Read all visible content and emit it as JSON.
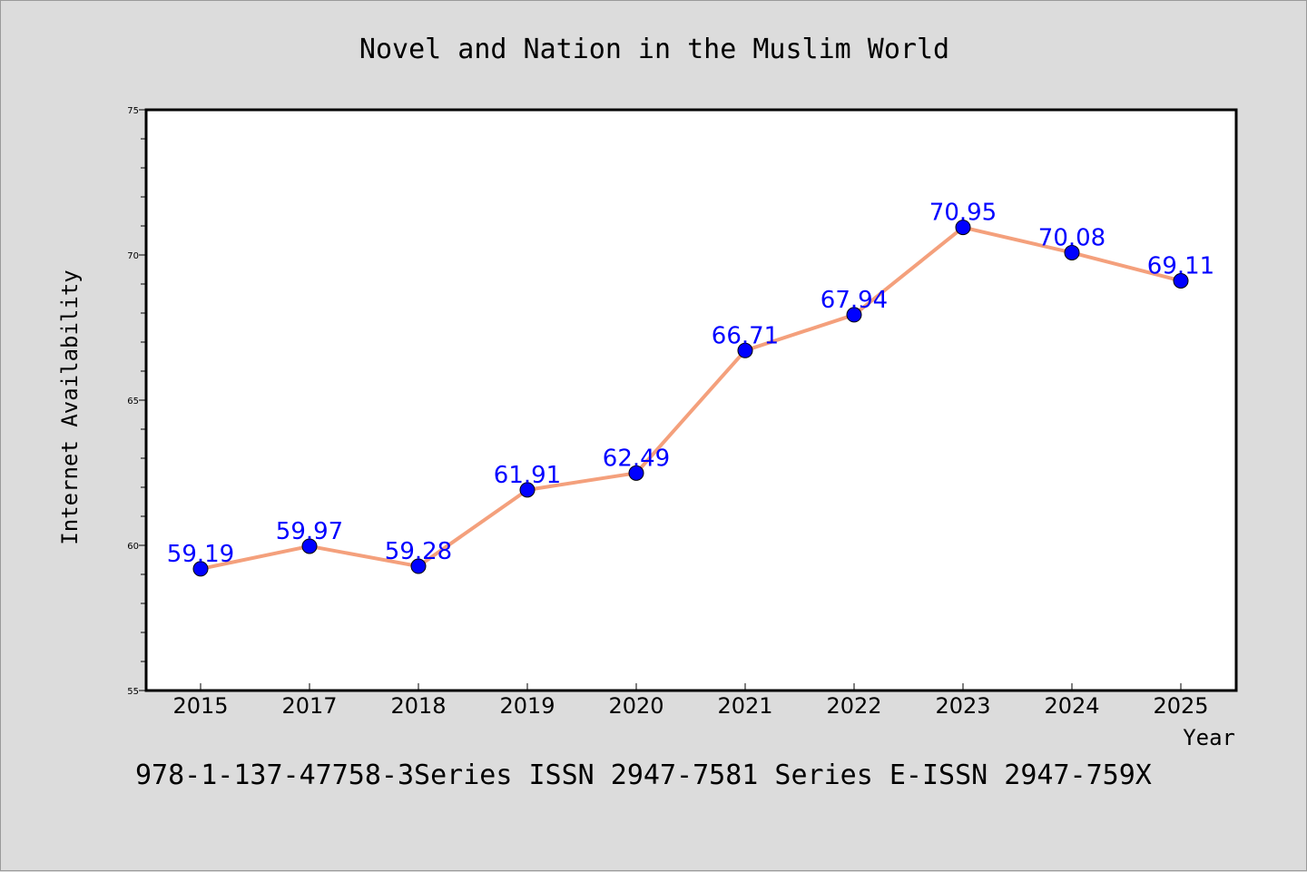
{
  "chart_data": {
    "type": "line",
    "title": "Novel and Nation in the Muslim World",
    "xlabel": "Year",
    "ylabel": "Internet Availability",
    "categories": [
      "2015",
      "2017",
      "2018",
      "2019",
      "2020",
      "2021",
      "2022",
      "2023",
      "2024",
      "2025"
    ],
    "series": [
      {
        "values": [
          59.19,
          59.97,
          59.28,
          61.91,
          62.49,
          66.71,
          67.94,
          70.95,
          70.08,
          69.11
        ],
        "labels": [
          "59.19",
          "59.97",
          "59.28",
          "61.91",
          "62.49",
          "66.71",
          "67.94",
          "70.95",
          "70.08",
          "69.11"
        ],
        "line_color": "#f4a07c",
        "marker_color": "#0000ff"
      }
    ],
    "ylim": [
      55,
      75
    ],
    "yticks": [
      "55",
      "60",
      "65",
      "70",
      "75"
    ],
    "grid": false,
    "legend": "none"
  },
  "footer_text": "978-1-137-47758-3Series ISSN 2947-7581 Series E-ISSN 2947-759X"
}
